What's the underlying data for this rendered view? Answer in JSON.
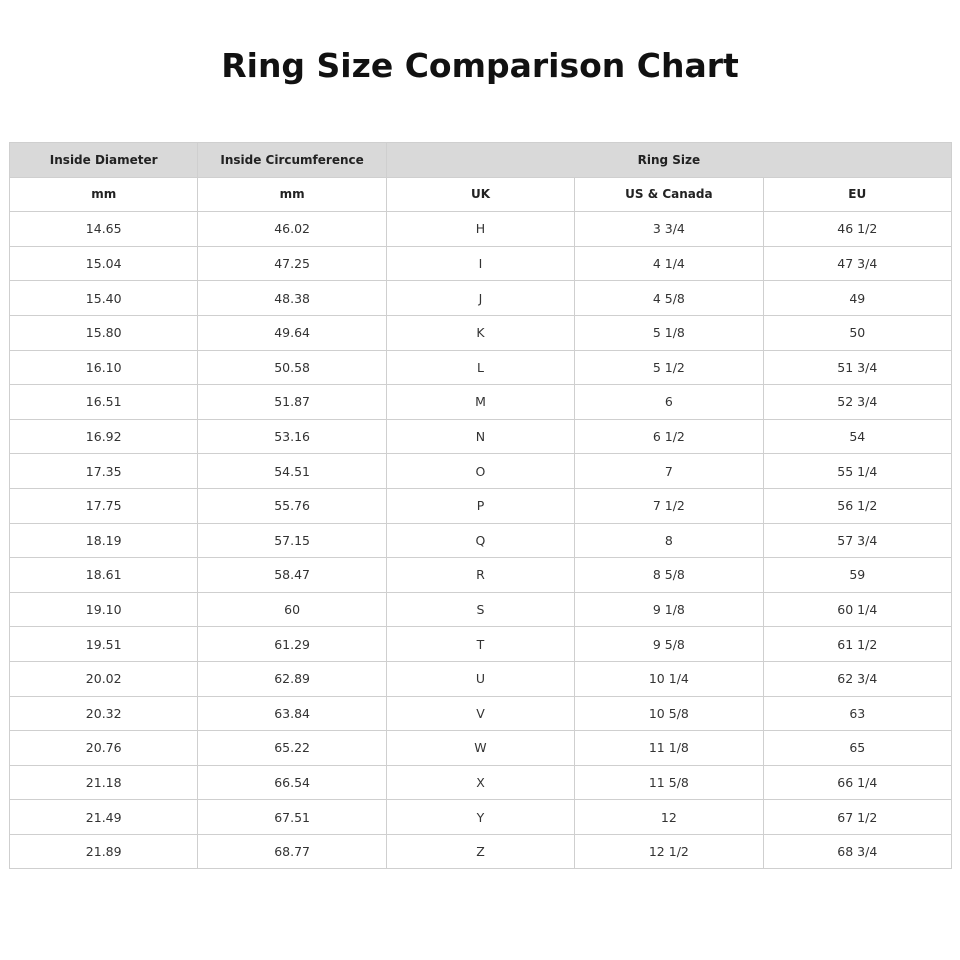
{
  "title": "Ring Size Comparison Chart",
  "table": {
    "header_top": [
      "Inside Diameter",
      "Inside Circumference",
      "Ring Size"
    ],
    "header_sub": [
      "mm",
      "mm",
      "UK",
      "US & Canada",
      "EU"
    ],
    "header_color": "#d9d9d9",
    "rows": [
      [
        "14.65",
        "46.02",
        "H",
        "3 3/4",
        "46 1/2"
      ],
      [
        "15.04",
        "47.25",
        "I",
        "4 1/4",
        "47 3/4"
      ],
      [
        "15.40",
        "48.38",
        "J",
        "4 5/8",
        "49"
      ],
      [
        "15.80",
        "49.64",
        "K",
        "5 1/8",
        "50"
      ],
      [
        "16.10",
        "50.58",
        "L",
        "5 1/2",
        "51 3/4"
      ],
      [
        "16.51",
        "51.87",
        "M",
        "6",
        "52 3/4"
      ],
      [
        "16.92",
        "53.16",
        "N",
        "6 1/2",
        "54"
      ],
      [
        "17.35",
        "54.51",
        "O",
        "7",
        "55 1/4"
      ],
      [
        "17.75",
        "55.76",
        "P",
        "7 1/2",
        "56 1/2"
      ],
      [
        "18.19",
        "57.15",
        "Q",
        "8",
        "57 3/4"
      ],
      [
        "18.61",
        "58.47",
        "R",
        "8 5/8",
        "59"
      ],
      [
        "19.10",
        "60",
        "S",
        "9 1/8",
        "60 1/4"
      ],
      [
        "19.51",
        "61.29",
        "T",
        "9 5/8",
        "61 1/2"
      ],
      [
        "20.02",
        "62.89",
        "U",
        "10 1/4",
        "62 3/4"
      ],
      [
        "20.32",
        "63.84",
        "V",
        "10 5/8",
        "63"
      ],
      [
        "20.76",
        "65.22",
        "W",
        "11 1/8",
        "65"
      ],
      [
        "21.18",
        "66.54",
        "X",
        "11 5/8",
        "66 1/4"
      ],
      [
        "21.49",
        "67.51",
        "Y",
        "12",
        "67 1/2"
      ],
      [
        "21.89",
        "68.77",
        "Z",
        "12 1/2",
        "68 3/4"
      ]
    ]
  }
}
